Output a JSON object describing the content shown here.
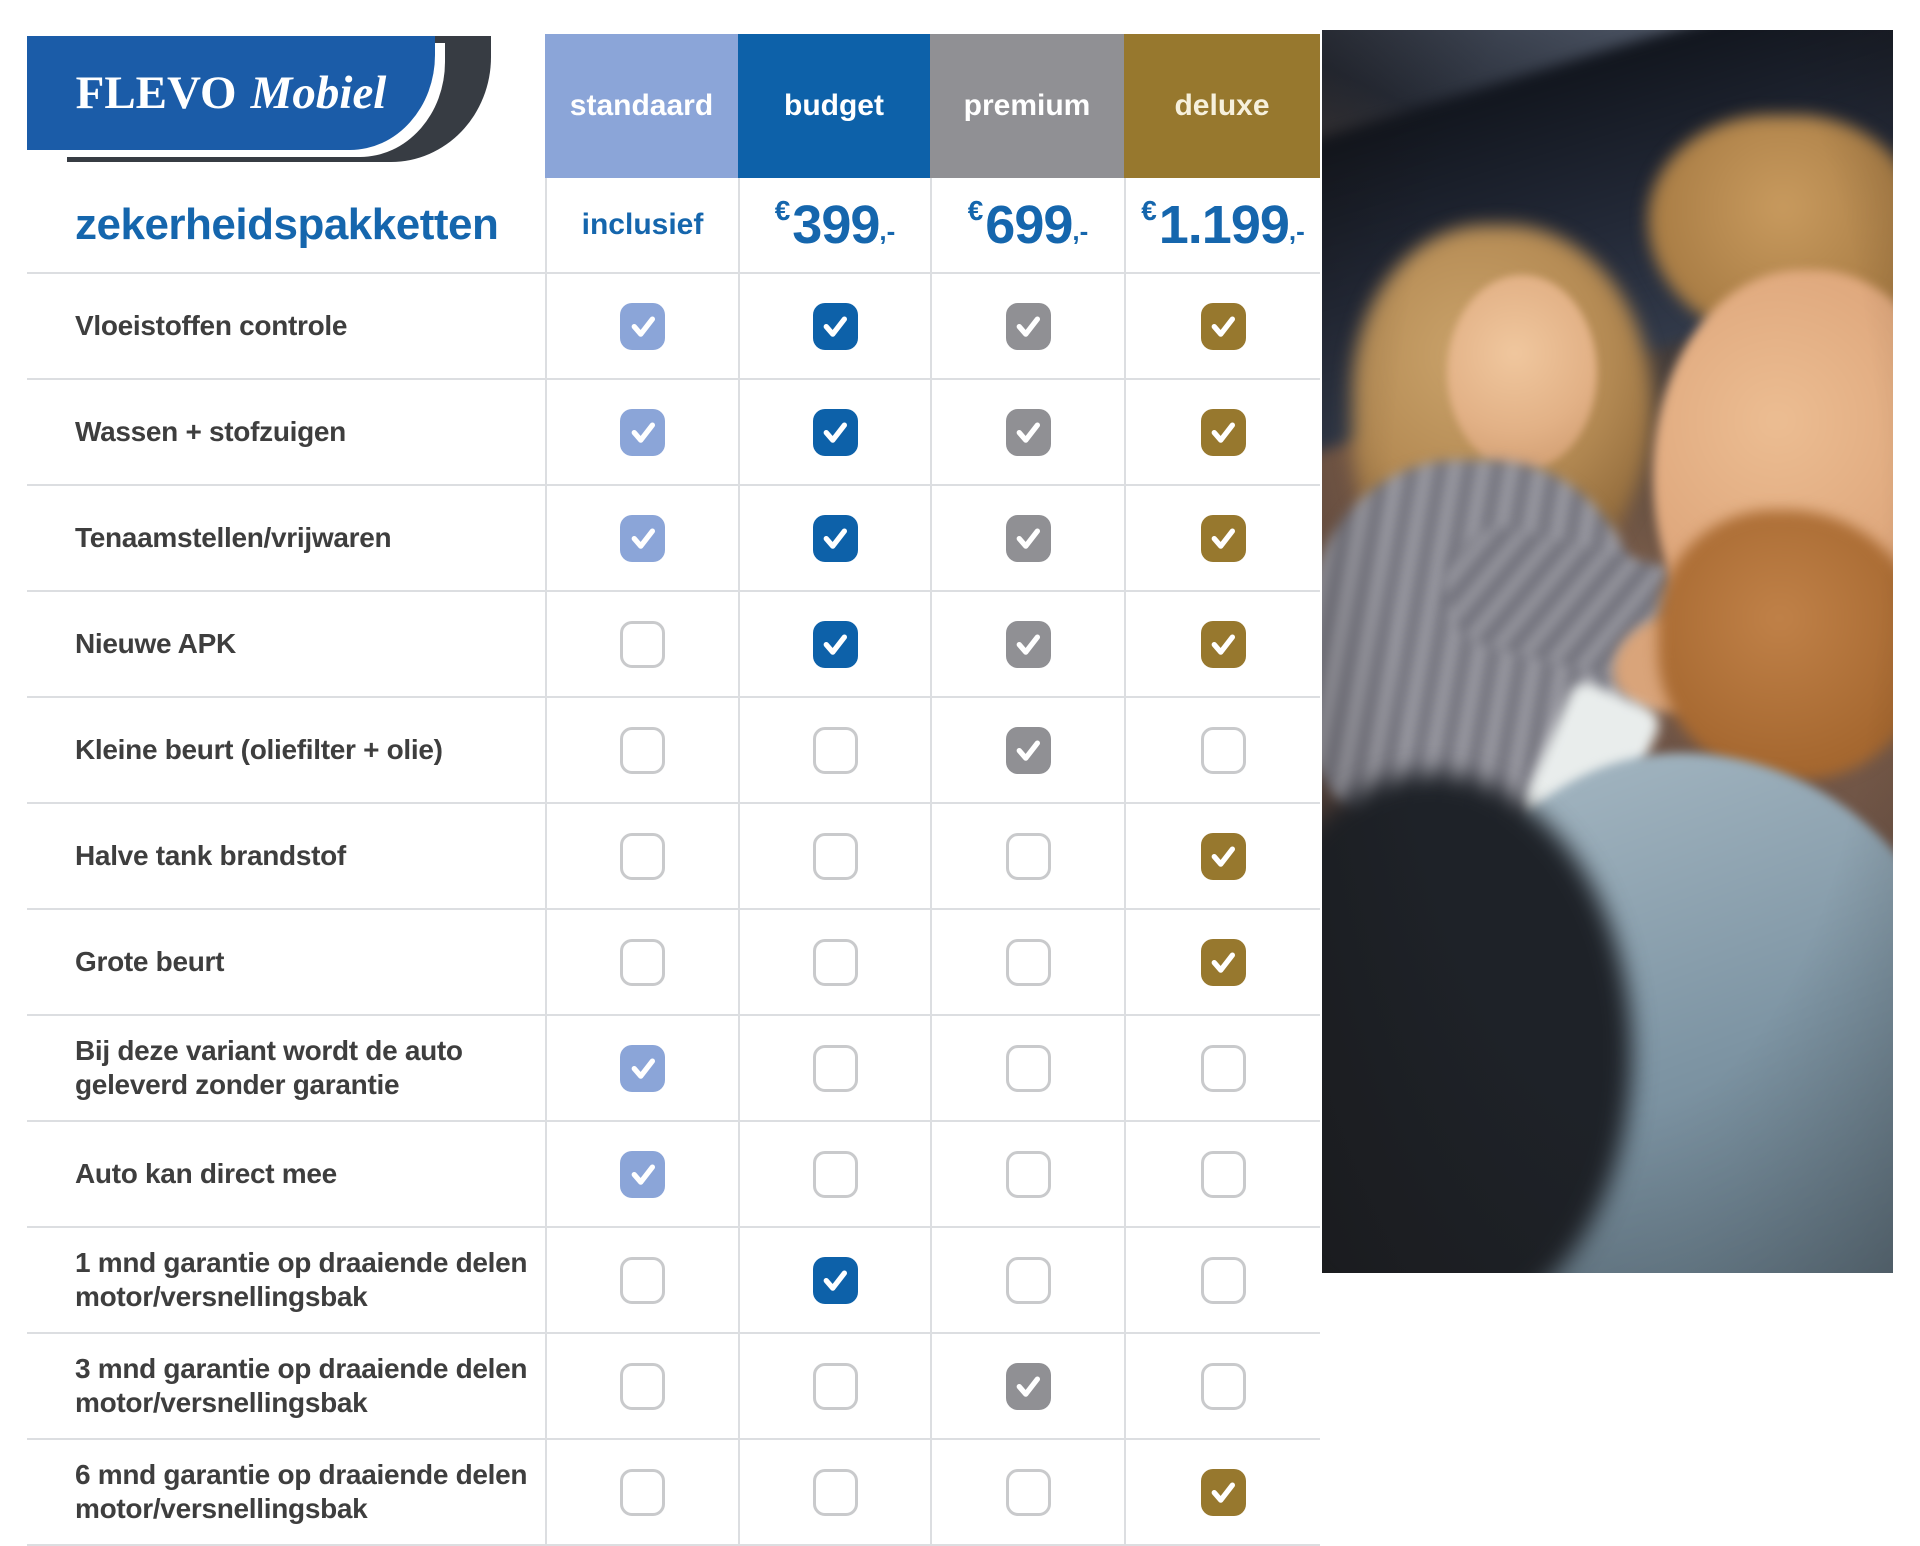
{
  "logo": {
    "primary": "FLEVO",
    "secondary": "Mobiel"
  },
  "title": "zekerheidspakketten",
  "colors": {
    "accent_blue": "#1566ad",
    "standaard": "#8ba5d8",
    "budget": "#0d61a9",
    "premium": "#909094",
    "deluxe": "#97782e",
    "row_line": "#dcdee1",
    "label_text": "#3e3e3e"
  },
  "packages": [
    {
      "label": "standaard",
      "color": "#8ba5d8",
      "price": {
        "text": "inclusief"
      }
    },
    {
      "label": "budget",
      "color": "#0d61a9",
      "price": {
        "currency": "€",
        "amount": "399",
        "suffix": ",-"
      }
    },
    {
      "label": "premium",
      "color": "#909094",
      "price": {
        "currency": "€",
        "amount": "699",
        "suffix": ",-"
      }
    },
    {
      "label": "deluxe",
      "color": "#97782e",
      "label_color": "#f6f0dc",
      "price": {
        "currency": "€",
        "amount": "1.199",
        "suffix": ",-"
      }
    }
  ],
  "features": [
    {
      "label": "Vloeistoffen controle",
      "checks": [
        true,
        true,
        true,
        true
      ]
    },
    {
      "label": "Wassen + stofzuigen",
      "checks": [
        true,
        true,
        true,
        true
      ]
    },
    {
      "label": "Tenaamstellen/vrijwaren",
      "checks": [
        true,
        true,
        true,
        true
      ]
    },
    {
      "label": "Nieuwe APK",
      "checks": [
        false,
        true,
        true,
        true
      ]
    },
    {
      "label": "Kleine beurt (oliefilter + olie)",
      "checks": [
        false,
        false,
        true,
        false
      ]
    },
    {
      "label": "Halve tank brandstof",
      "checks": [
        false,
        false,
        false,
        true
      ]
    },
    {
      "label": "Grote beurt",
      "checks": [
        false,
        false,
        false,
        true
      ]
    },
    {
      "label": "Bij deze variant wordt de auto geleverd zonder garantie",
      "checks": [
        true,
        false,
        false,
        false
      ]
    },
    {
      "label": "Auto kan direct mee",
      "checks": [
        true,
        false,
        false,
        false
      ]
    },
    {
      "label": "1 mnd garantie op draaiende delen motor/versnellingsbak",
      "checks": [
        false,
        true,
        false,
        false
      ]
    },
    {
      "label": "3 mnd garantie op draaiende delen motor/versnellingsbak",
      "checks": [
        false,
        false,
        true,
        false
      ]
    },
    {
      "label": "6 mnd garantie op draaiende delen motor/versnellingsbak",
      "checks": [
        false,
        false,
        false,
        true
      ]
    }
  ],
  "photo": {
    "description": "Smiling couple sitting together in a car"
  }
}
